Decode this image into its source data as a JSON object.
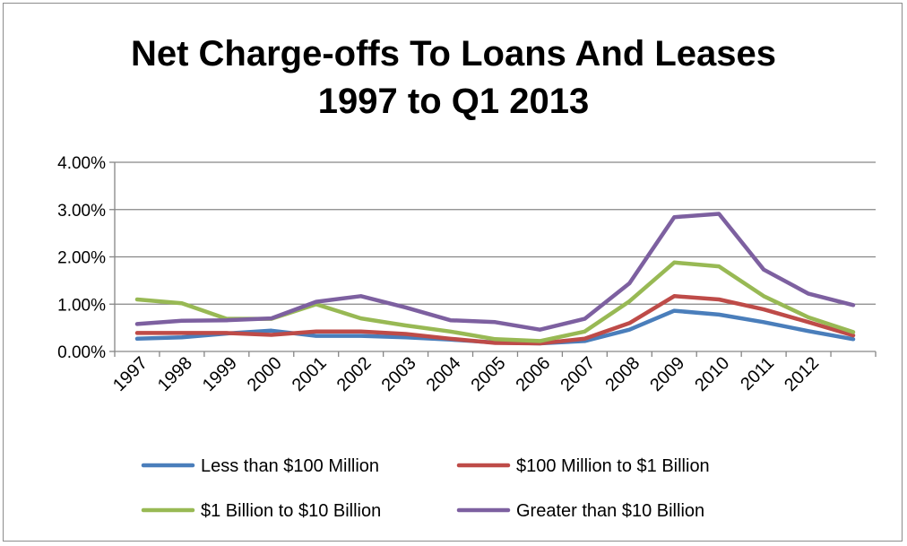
{
  "chart_data": {
    "type": "line",
    "title_line1": "Net Charge-offs To Loans And Leases",
    "title_line2": "1997 to Q1 2013",
    "xlabel": "",
    "ylabel": "",
    "ylim": [
      0,
      4
    ],
    "y_ticks": [
      "0.00%",
      "1.00%",
      "2.00%",
      "3.00%",
      "4.00%"
    ],
    "y_tick_values": [
      0,
      1,
      2,
      3,
      4
    ],
    "categories": [
      "1997",
      "1998",
      "1999",
      "2000",
      "2001",
      "2002",
      "2003",
      "2004",
      "2005",
      "2006",
      "2007",
      "2008",
      "2009",
      "2010",
      "2011",
      "2012",
      ""
    ],
    "grid": true,
    "legend_position": "bottom",
    "series": [
      {
        "name": "Less than $100 Million",
        "color": "#4a7ebb",
        "values": [
          0.27,
          0.3,
          0.38,
          0.44,
          0.33,
          0.33,
          0.3,
          0.25,
          0.19,
          0.17,
          0.22,
          0.46,
          0.86,
          0.78,
          0.62,
          0.43,
          0.26
        ]
      },
      {
        "name": "$100 Million to $1 Billion",
        "color": "#be4b48",
        "values": [
          0.39,
          0.39,
          0.39,
          0.35,
          0.42,
          0.42,
          0.37,
          0.27,
          0.18,
          0.17,
          0.27,
          0.6,
          1.17,
          1.1,
          0.89,
          0.62,
          0.34
        ]
      },
      {
        "name": "$1 Billion to $10 Billion",
        "color": "#98b954",
        "values": [
          1.1,
          1.02,
          0.69,
          0.69,
          1.0,
          0.7,
          0.55,
          0.42,
          0.26,
          0.22,
          0.42,
          1.06,
          1.88,
          1.8,
          1.17,
          0.72,
          0.41
        ]
      },
      {
        "name": "Greater than $10 Billion",
        "color": "#7d60a0",
        "values": [
          0.58,
          0.65,
          0.66,
          0.7,
          1.05,
          1.17,
          0.93,
          0.66,
          0.62,
          0.46,
          0.69,
          1.44,
          2.84,
          2.91,
          1.73,
          1.22,
          0.98
        ]
      }
    ]
  }
}
